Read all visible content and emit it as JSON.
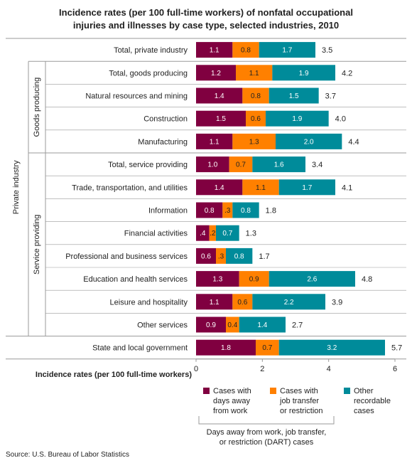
{
  "chart_data": {
    "type": "bar",
    "orientation": "horizontal",
    "stacked": true,
    "title_lines": [
      "Incidence rates (per 100 full-time workers) of nonfatal occupational",
      "injuries and illnesses by case type, selected industries, 2010"
    ],
    "categories": [
      "Total, private industry",
      "Total, goods producing",
      "Natural resources and mining",
      "Construction",
      "Manufacturing",
      "Total, service providing",
      "Trade, transportation, and utilities",
      "Information",
      "Financial activities",
      "Professional and business services",
      "Education and health services",
      "Leisure and hospitality",
      "Other services",
      "State and local government"
    ],
    "series": [
      {
        "name": "Cases with days away from work",
        "legend_lines": [
          "Cases with",
          "days away",
          "from work"
        ],
        "color": "#800040",
        "values": [
          1.1,
          1.2,
          1.4,
          1.5,
          1.1,
          1.0,
          1.4,
          0.8,
          0.4,
          0.6,
          1.3,
          1.1,
          0.9,
          1.8
        ],
        "labels": [
          "1.1",
          "1.2",
          "1.4",
          "1.5",
          "1.1",
          "1.0",
          "1.4",
          "0.8",
          ".4",
          "0.6",
          "1.3",
          "1.1",
          "0.9",
          "1.8"
        ]
      },
      {
        "name": "Cases with job transfer or restriction",
        "legend_lines": [
          "Cases with",
          "job transfer",
          "or restriction"
        ],
        "color": "#ff8000",
        "values": [
          0.8,
          1.1,
          0.8,
          0.6,
          1.3,
          0.7,
          1.1,
          0.3,
          0.2,
          0.3,
          0.9,
          0.6,
          0.4,
          0.7
        ],
        "labels": [
          "0.8",
          "1.1",
          "0.8",
          "0.6",
          "1.3",
          "0.7",
          "1.1",
          ".3",
          ".2",
          ".3",
          "0.9",
          "0.6",
          "0.4",
          "0.7"
        ]
      },
      {
        "name": "Other recordable cases",
        "legend_lines": [
          "Other",
          "recordable",
          "cases"
        ],
        "color": "#008b9a",
        "values": [
          1.7,
          1.9,
          1.5,
          1.9,
          2.0,
          1.6,
          1.7,
          0.8,
          0.7,
          0.8,
          2.6,
          2.2,
          1.4,
          3.2
        ],
        "labels": [
          "1.7",
          "1.9",
          "1.5",
          "1.9",
          "2.0",
          "1.6",
          "1.7",
          "0.8",
          "0.7",
          "0.8",
          "2.6",
          "2.2",
          "1.4",
          "3.2"
        ]
      }
    ],
    "totals": [
      "3.5",
      "4.2",
      "3.7",
      "4.0",
      "4.4",
      "3.4",
      "4.1",
      "1.8",
      "1.3",
      "1.7",
      "4.8",
      "3.9",
      "2.7",
      "5.7"
    ],
    "groups": {
      "outer": {
        "label": "Private industry",
        "from": 0,
        "to": 12
      },
      "inner": [
        {
          "label": "Goods producing",
          "from": 1,
          "to": 4
        },
        {
          "label": "Service providing",
          "from": 5,
          "to": 12
        }
      ]
    },
    "xlabel": "Incidence rates (per 100 full-time workers)",
    "xlim": [
      0,
      6
    ],
    "xticks": [
      0,
      2,
      4,
      6
    ],
    "grid": false,
    "legend_position": "bottom",
    "legend_group_label_lines": [
      "Days away from work, job transfer,",
      "or restriction (DART) cases"
    ]
  },
  "source": "Source: U.S. Bureau of Labor Statistics"
}
